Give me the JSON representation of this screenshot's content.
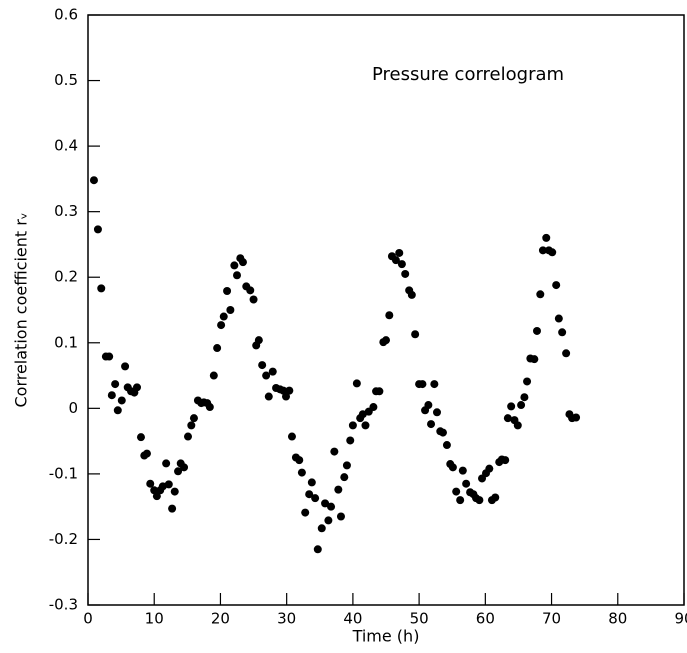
{
  "chart_data": {
    "type": "scatter",
    "title": "Pressure correlogram",
    "x_label": "Time (h)",
    "y_label": "Correlation coefficient rᵥ",
    "color": "#000000",
    "xlim": [
      0,
      90
    ],
    "xticks": [
      0,
      10,
      20,
      30,
      40,
      50,
      60,
      70,
      80,
      90
    ],
    "ylim": [
      -0.3,
      0.6
    ],
    "yticks": [
      -0.3,
      -0.2,
      -0.1,
      0,
      0.1,
      0.2,
      0.3,
      0.4,
      0.5,
      0.6
    ],
    "x": [
      0.9,
      1.5,
      2.0,
      2.7,
      3.2,
      3.6,
      4.1,
      4.5,
      5.1,
      5.6,
      6.0,
      6.5,
      7.0,
      7.4,
      8.0,
      8.5,
      8.9,
      9.4,
      10.0,
      10.4,
      10.9,
      11.3,
      11.8,
      12.2,
      12.7,
      13.1,
      13.6,
      14.0,
      14.5,
      15.1,
      15.6,
      16.0,
      16.6,
      17.1,
      17.5,
      18.0,
      18.4,
      19.0,
      19.5,
      20.1,
      20.5,
      21.0,
      21.5,
      22.1,
      22.5,
      23.0,
      23.4,
      23.9,
      24.5,
      25.0,
      25.4,
      25.8,
      26.3,
      26.9,
      27.3,
      27.9,
      28.4,
      29.0,
      29.5,
      29.9,
      30.4,
      30.8,
      31.4,
      31.9,
      32.3,
      32.8,
      33.4,
      33.8,
      34.3,
      34.7,
      35.3,
      35.8,
      36.3,
      36.7,
      37.2,
      37.8,
      38.2,
      38.7,
      39.1,
      39.6,
      40.0,
      40.6,
      41.1,
      41.5,
      41.9,
      42.4,
      43.1,
      43.5,
      44.0,
      44.6,
      45.0,
      45.5,
      45.9,
      46.5,
      47.0,
      47.4,
      47.9,
      48.5,
      48.9,
      49.4,
      50.0,
      50.5,
      50.9,
      51.4,
      51.8,
      52.3,
      52.7,
      53.2,
      53.6,
      54.2,
      54.7,
      55.1,
      55.6,
      56.2,
      56.6,
      57.1,
      57.7,
      58.2,
      58.6,
      59.1,
      59.5,
      60.1,
      60.6,
      61.0,
      61.5,
      62.1,
      62.5,
      63.0,
      63.4,
      63.9,
      64.4,
      64.9,
      65.4,
      65.9,
      66.3,
      66.8,
      67.4,
      67.8,
      68.3,
      68.7,
      69.2,
      69.6,
      70.1,
      70.7,
      71.1,
      71.6,
      72.2,
      72.7,
      73.1,
      73.7
    ],
    "values": [
      0.348,
      0.273,
      0.183,
      0.079,
      0.079,
      0.02,
      0.037,
      -0.003,
      0.012,
      0.064,
      0.032,
      0.026,
      0.024,
      0.032,
      -0.044,
      -0.072,
      -0.069,
      -0.115,
      -0.125,
      -0.134,
      -0.125,
      -0.119,
      -0.084,
      -0.116,
      -0.153,
      -0.127,
      -0.096,
      -0.084,
      -0.09,
      -0.043,
      -0.026,
      -0.015,
      0.012,
      0.008,
      0.009,
      0.008,
      0.002,
      0.05,
      0.092,
      0.127,
      0.14,
      0.179,
      0.15,
      0.218,
      0.203,
      0.229,
      0.223,
      0.186,
      0.18,
      0.166,
      0.096,
      0.104,
      0.066,
      0.05,
      0.018,
      0.056,
      0.031,
      0.029,
      0.027,
      0.018,
      0.027,
      -0.043,
      -0.075,
      -0.079,
      -0.098,
      -0.159,
      -0.131,
      -0.113,
      -0.137,
      -0.215,
      -0.183,
      -0.145,
      -0.171,
      -0.15,
      -0.066,
      -0.124,
      -0.165,
      -0.105,
      -0.087,
      -0.049,
      -0.026,
      0.038,
      -0.015,
      -0.009,
      -0.026,
      -0.005,
      0.002,
      0.026,
      0.026,
      0.101,
      0.104,
      0.142,
      0.232,
      0.226,
      0.237,
      0.22,
      0.205,
      0.18,
      0.173,
      0.113,
      0.037,
      0.037,
      -0.003,
      0.005,
      -0.024,
      0.037,
      -0.006,
      -0.035,
      -0.037,
      -0.056,
      -0.085,
      -0.09,
      -0.127,
      -0.14,
      -0.095,
      -0.115,
      -0.128,
      -0.131,
      -0.137,
      -0.14,
      -0.107,
      -0.099,
      -0.092,
      -0.14,
      -0.136,
      -0.082,
      -0.078,
      -0.079,
      -0.015,
      0.003,
      -0.018,
      -0.026,
      0.005,
      0.017,
      0.041,
      0.076,
      0.075,
      0.118,
      0.174,
      0.241,
      0.26,
      0.241,
      0.238,
      0.188,
      0.137,
      0.116,
      0.084,
      -0.009,
      -0.015,
      -0.014
    ]
  }
}
